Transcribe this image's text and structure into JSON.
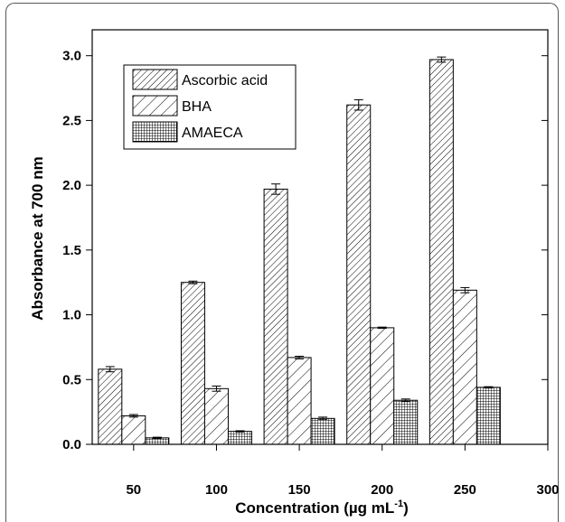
{
  "chart_data": {
    "type": "bar",
    "xlabel": "Concentration (µg mL",
    "xlabel_superscript": "-1",
    "xlabel_suffix": ")",
    "ylabel": "Absorbance at 700 nm",
    "ylim": [
      0,
      3.2
    ],
    "yticks": [
      "0.0",
      "0.5",
      "1.0",
      "1.5",
      "2.0",
      "2.5",
      "3.0"
    ],
    "xlim": [
      25,
      300
    ],
    "xticks": [
      "50",
      "100",
      "150",
      "200",
      "250",
      "300"
    ],
    "categories": [
      50,
      100,
      150,
      200,
      250
    ],
    "series": [
      {
        "name": "Ascorbic acid",
        "pattern": "hatch-fine",
        "values": [
          0.58,
          1.25,
          1.97,
          2.62,
          2.97
        ],
        "errors": [
          0.02,
          0.01,
          0.04,
          0.04,
          0.02
        ]
      },
      {
        "name": "BHA",
        "pattern": "hatch-wide",
        "values": [
          0.22,
          0.43,
          0.67,
          0.9,
          1.19
        ],
        "errors": [
          0.01,
          0.02,
          0.01,
          0.005,
          0.02
        ]
      },
      {
        "name": "AMAECA",
        "pattern": "crosshatch",
        "values": [
          0.05,
          0.1,
          0.2,
          0.34,
          0.44
        ],
        "errors": [
          0.005,
          0.005,
          0.01,
          0.01,
          0.005
        ]
      }
    ],
    "legend_position": "top-left",
    "grid": false
  }
}
